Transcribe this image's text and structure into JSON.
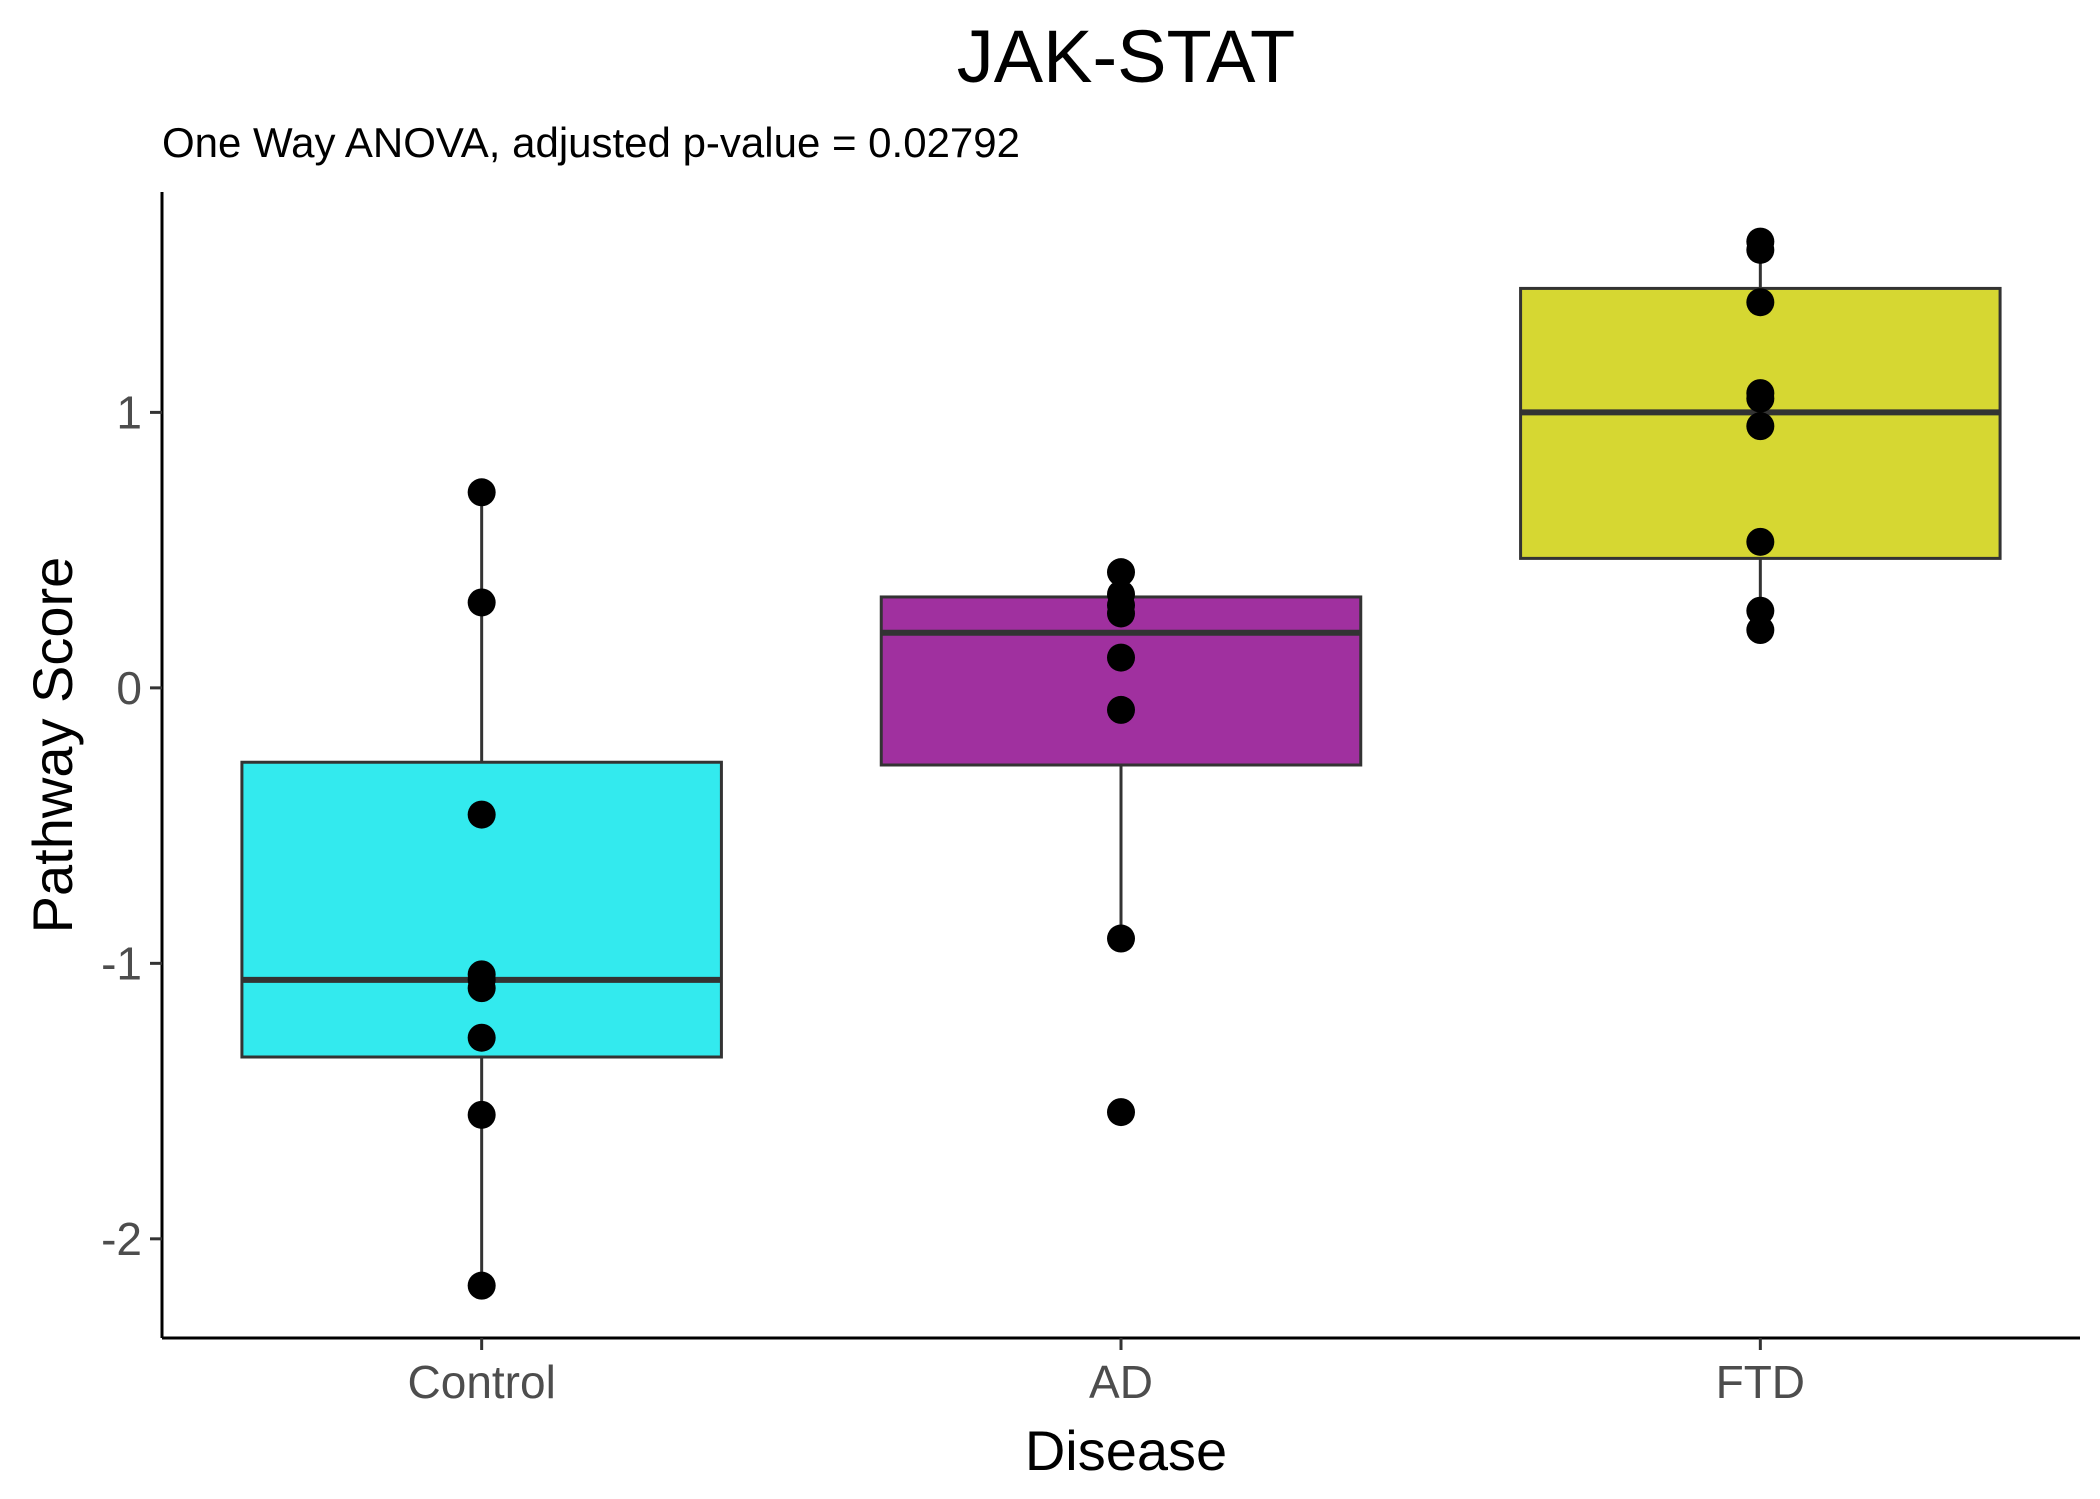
{
  "chart_data": {
    "type": "boxplot",
    "title": "JAK-STAT",
    "subtitle": "One Way ANOVA, adjusted p-value = 0.02792",
    "xlabel": "Disease",
    "ylabel": "Pathway Score",
    "categories": [
      "Control",
      "AD",
      "FTD"
    ],
    "ylim": [
      -2.36,
      1.8
    ],
    "y_ticks": [
      -2,
      -1,
      0,
      1
    ],
    "y_tick_labels": [
      "-2",
      "-1",
      "0",
      "1"
    ],
    "grid": false,
    "legend": "none",
    "groups": [
      {
        "name": "Control",
        "color": "#33EAEE",
        "q1": -1.34,
        "median": -1.06,
        "q3": -0.27,
        "whisker_low": -2.17,
        "whisker_high": 0.71,
        "points": [
          0.71,
          0.31,
          -0.46,
          -1.04,
          -1.06,
          -1.09,
          -1.27,
          -1.55,
          -2.17
        ]
      },
      {
        "name": "AD",
        "color": "#A0309F",
        "q1": -0.28,
        "median": 0.2,
        "q3": 0.33,
        "whisker_low": -0.91,
        "whisker_high": 0.42,
        "points": [
          0.42,
          0.34,
          0.3,
          0.27,
          0.11,
          -0.08,
          -0.91,
          -1.54
        ]
      },
      {
        "name": "FTD",
        "color": "#D6D732",
        "q1": 0.47,
        "median": 1.0,
        "q3": 1.45,
        "whisker_low": 0.21,
        "whisker_high": 1.62,
        "points": [
          1.62,
          1.59,
          1.4,
          1.07,
          1.05,
          0.95,
          0.53,
          0.28,
          0.21
        ]
      }
    ]
  }
}
